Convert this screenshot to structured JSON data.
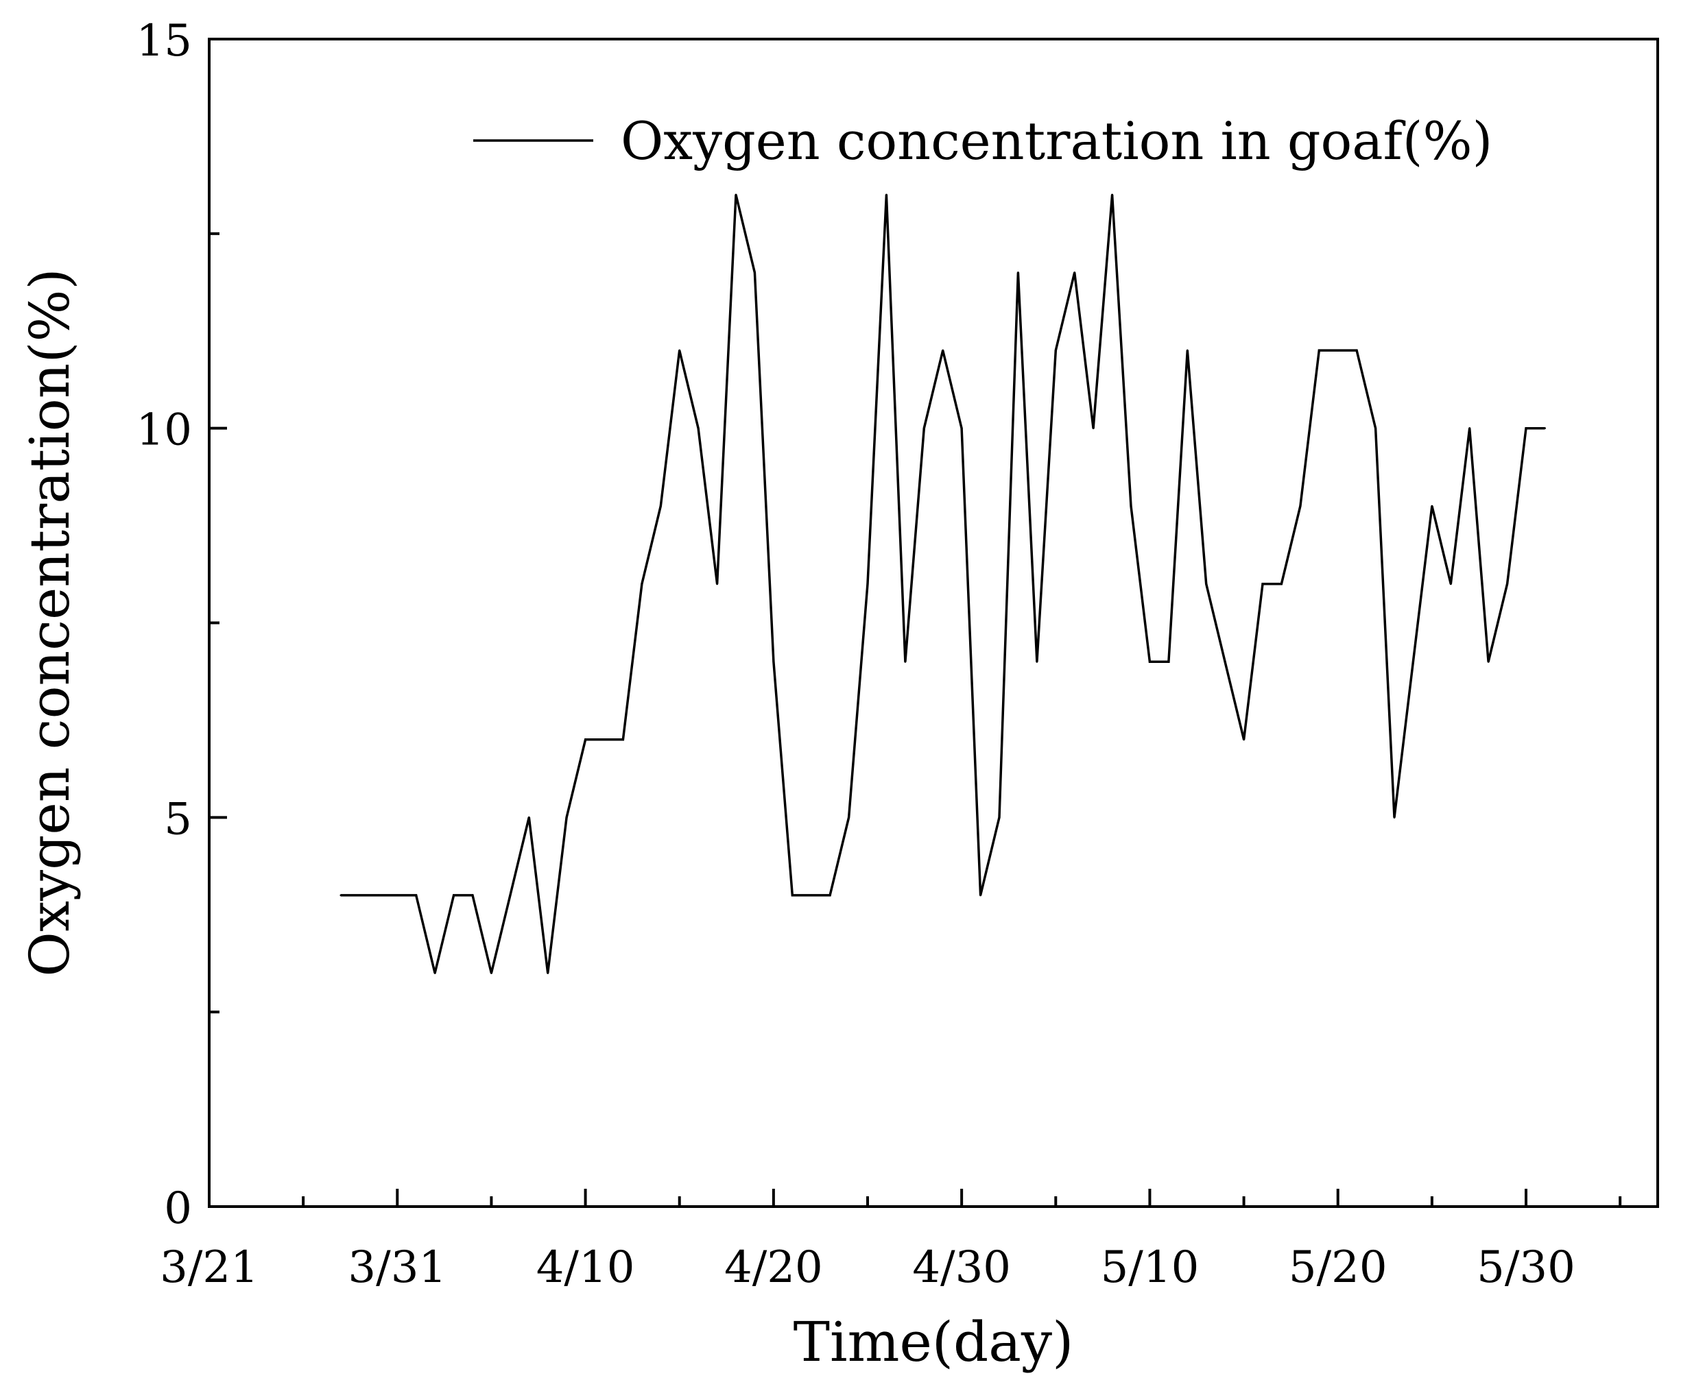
{
  "chart_data": {
    "type": "line",
    "xlabel": "Time(day)",
    "ylabel": "Oxygen concentration(%)",
    "legend": {
      "label": "Oxygen concentration in goaf(%)",
      "position": "top-right"
    },
    "xlim": [
      0,
      77
    ],
    "ylim": [
      0,
      15
    ],
    "x_ticks": [
      {
        "value": 0,
        "label": "3/21"
      },
      {
        "value": 10,
        "label": "3/31"
      },
      {
        "value": 20,
        "label": "4/10"
      },
      {
        "value": 30,
        "label": "4/20"
      },
      {
        "value": 40,
        "label": "4/30"
      },
      {
        "value": 50,
        "label": "5/10"
      },
      {
        "value": 60,
        "label": "5/20"
      },
      {
        "value": 70,
        "label": "5/30"
      }
    ],
    "x_minor_ticks": [
      5,
      15,
      25,
      35,
      45,
      55,
      65,
      75
    ],
    "y_ticks": [
      {
        "value": 0,
        "label": "0"
      },
      {
        "value": 5,
        "label": "5"
      },
      {
        "value": 10,
        "label": "10"
      },
      {
        "value": 15,
        "label": "15"
      }
    ],
    "y_minor_ticks": [
      2.5,
      7.5,
      12.5
    ],
    "grid": false,
    "series": [
      {
        "name": "Oxygen concentration in goaf(%)",
        "color": "#000000",
        "points": [
          [
            7,
            4
          ],
          [
            8,
            4
          ],
          [
            9,
            4
          ],
          [
            10,
            4
          ],
          [
            11,
            4
          ],
          [
            12,
            3
          ],
          [
            13,
            4
          ],
          [
            14,
            4
          ],
          [
            15,
            3
          ],
          [
            16,
            4
          ],
          [
            17,
            5
          ],
          [
            18,
            3
          ],
          [
            19,
            5
          ],
          [
            20,
            6
          ],
          [
            21,
            6
          ],
          [
            22,
            6
          ],
          [
            23,
            8
          ],
          [
            24,
            9
          ],
          [
            25,
            11
          ],
          [
            26,
            10
          ],
          [
            27,
            8
          ],
          [
            28,
            13
          ],
          [
            29,
            12
          ],
          [
            30,
            7
          ],
          [
            31,
            4
          ],
          [
            32,
            4
          ],
          [
            33,
            4
          ],
          [
            34,
            5
          ],
          [
            35,
            8
          ],
          [
            36,
            13
          ],
          [
            37,
            7
          ],
          [
            38,
            10
          ],
          [
            39,
            11
          ],
          [
            40,
            10
          ],
          [
            41,
            4
          ],
          [
            42,
            5
          ],
          [
            43,
            12
          ],
          [
            44,
            7
          ],
          [
            45,
            11
          ],
          [
            46,
            12
          ],
          [
            47,
            10
          ],
          [
            48,
            13
          ],
          [
            49,
            9
          ],
          [
            50,
            7
          ],
          [
            51,
            7
          ],
          [
            52,
            11
          ],
          [
            53,
            8
          ],
          [
            54,
            7
          ],
          [
            55,
            6
          ],
          [
            56,
            8
          ],
          [
            57,
            8
          ],
          [
            58,
            9
          ],
          [
            59,
            11
          ],
          [
            60,
            11
          ],
          [
            61,
            11
          ],
          [
            62,
            10
          ],
          [
            63,
            5
          ],
          [
            64,
            7
          ],
          [
            65,
            9
          ],
          [
            66,
            8
          ],
          [
            67,
            10
          ],
          [
            68,
            7
          ],
          [
            69,
            8
          ],
          [
            70,
            10
          ],
          [
            71,
            10
          ]
        ]
      }
    ]
  }
}
